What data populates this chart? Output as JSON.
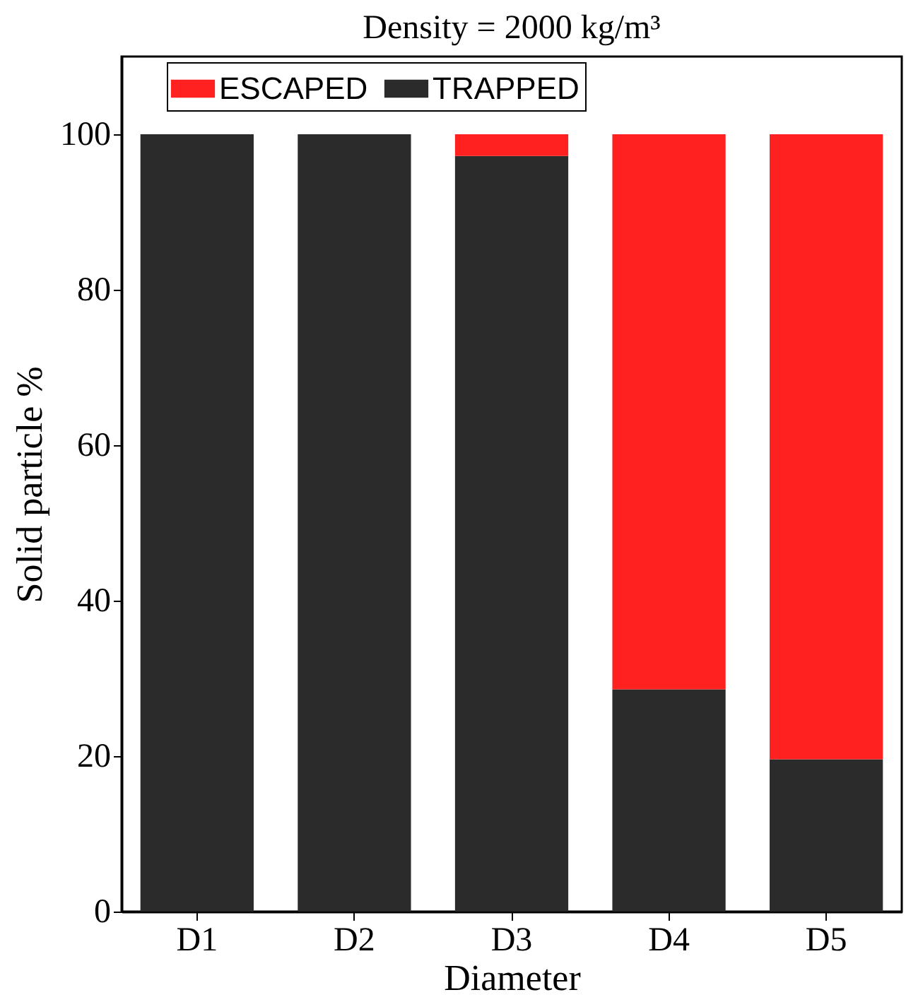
{
  "chart_data": {
    "type": "bar",
    "title": "Density = 2000 kg/m³",
    "xlabel": "Diameter",
    "ylabel": "Solid particle %",
    "categories": [
      "D1",
      "D2",
      "D3",
      "D4",
      "D5"
    ],
    "stacked": true,
    "series": [
      {
        "name": "TRAPPED",
        "color": "#2b2b2b",
        "values": [
          100,
          100,
          97.2,
          28.6,
          19.6
        ]
      },
      {
        "name": "ESCAPED",
        "color": "#ff2020",
        "values": [
          0,
          0,
          2.8,
          71.4,
          80.4
        ]
      }
    ],
    "ylim": [
      0,
      110
    ],
    "yticks": [
      0,
      20,
      40,
      60,
      80,
      100
    ],
    "legend": "top",
    "grid": false
  }
}
